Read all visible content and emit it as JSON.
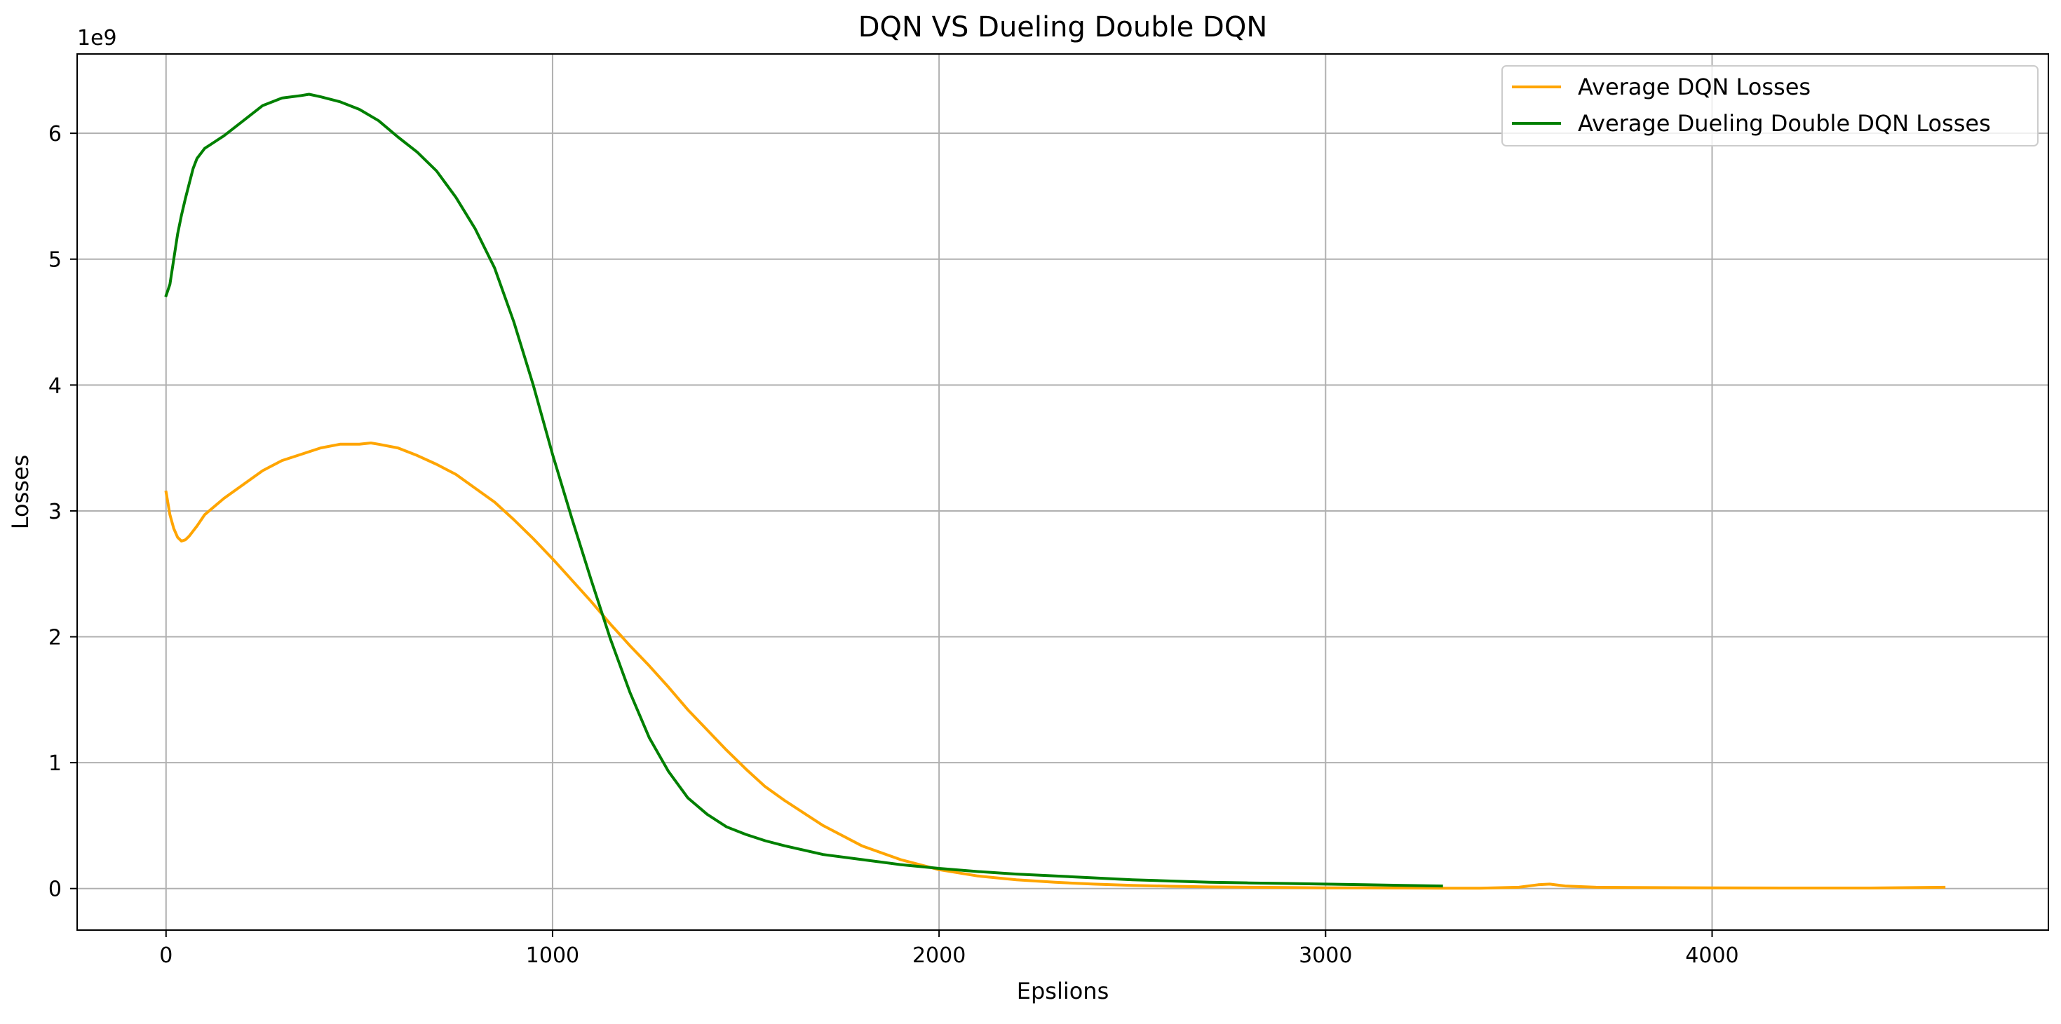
{
  "chart_data": {
    "type": "line",
    "title": "DQN VS Dueling Double DQN",
    "xlabel": "Epslions",
    "ylabel": "Losses",
    "y_offset_label": "1e9",
    "xlim": [
      -230,
      4870
    ],
    "ylim": [
      -0.33,
      6.63
    ],
    "x_ticks": [
      0,
      1000,
      2000,
      3000,
      4000
    ],
    "x_tick_labels": [
      "0",
      "1000",
      "2000",
      "3000",
      "4000"
    ],
    "y_ticks": [
      0,
      1,
      2,
      3,
      4,
      5,
      6
    ],
    "y_tick_labels": [
      "0",
      "1",
      "2",
      "3",
      "4",
      "5",
      "6"
    ],
    "grid": true,
    "legend_position": "top-right",
    "series": [
      {
        "name": "Average DQN Losses",
        "color": "#FFA500",
        "x": [
          0,
          10,
          20,
          30,
          40,
          50,
          60,
          80,
          100,
          150,
          200,
          250,
          300,
          350,
          400,
          450,
          500,
          530,
          550,
          600,
          650,
          700,
          750,
          800,
          850,
          900,
          950,
          1000,
          1050,
          1100,
          1150,
          1200,
          1250,
          1300,
          1350,
          1400,
          1450,
          1500,
          1550,
          1600,
          1700,
          1800,
          1900,
          2000,
          2100,
          2200,
          2300,
          2400,
          2500,
          2600,
          2700,
          2800,
          2900,
          3000,
          3100,
          3200,
          3300,
          3400,
          3500,
          3550,
          3580,
          3620,
          3700,
          3800,
          4000,
          4200,
          4400,
          4600
        ],
        "y": [
          3.15,
          2.97,
          2.86,
          2.79,
          2.76,
          2.77,
          2.8,
          2.88,
          2.97,
          3.1,
          3.21,
          3.32,
          3.4,
          3.45,
          3.5,
          3.53,
          3.53,
          3.54,
          3.53,
          3.5,
          3.44,
          3.37,
          3.29,
          3.18,
          3.07,
          2.93,
          2.78,
          2.62,
          2.45,
          2.28,
          2.1,
          1.93,
          1.77,
          1.6,
          1.42,
          1.26,
          1.1,
          0.95,
          0.81,
          0.7,
          0.5,
          0.34,
          0.23,
          0.15,
          0.1,
          0.07,
          0.05,
          0.035,
          0.025,
          0.018,
          0.013,
          0.01,
          0.008,
          0.006,
          0.005,
          0.004,
          0.003,
          0.003,
          0.01,
          0.03,
          0.035,
          0.02,
          0.01,
          0.008,
          0.005,
          0.004,
          0.004,
          0.01
        ]
      },
      {
        "name": "Average Dueling Double DQN Losses",
        "color": "#008000",
        "x": [
          0,
          10,
          20,
          30,
          40,
          50,
          60,
          70,
          80,
          100,
          120,
          150,
          200,
          250,
          300,
          350,
          370,
          400,
          450,
          500,
          550,
          600,
          650,
          700,
          750,
          800,
          850,
          900,
          950,
          1000,
          1050,
          1100,
          1150,
          1200,
          1250,
          1300,
          1350,
          1400,
          1450,
          1500,
          1550,
          1600,
          1700,
          1800,
          1900,
          2000,
          2100,
          2200,
          2300,
          2400,
          2500,
          2600,
          2700,
          2800,
          2900,
          3000,
          3100,
          3200,
          3300
        ],
        "y": [
          4.71,
          4.8,
          5.0,
          5.2,
          5.35,
          5.48,
          5.6,
          5.72,
          5.8,
          5.88,
          5.92,
          5.98,
          6.1,
          6.22,
          6.28,
          6.3,
          6.31,
          6.29,
          6.25,
          6.19,
          6.1,
          5.97,
          5.85,
          5.7,
          5.49,
          5.24,
          4.93,
          4.5,
          4.0,
          3.45,
          2.94,
          2.45,
          1.98,
          1.56,
          1.2,
          0.93,
          0.72,
          0.59,
          0.49,
          0.43,
          0.38,
          0.34,
          0.27,
          0.23,
          0.19,
          0.16,
          0.135,
          0.115,
          0.1,
          0.085,
          0.07,
          0.06,
          0.05,
          0.045,
          0.04,
          0.035,
          0.03,
          0.025,
          0.02
        ]
      }
    ]
  }
}
